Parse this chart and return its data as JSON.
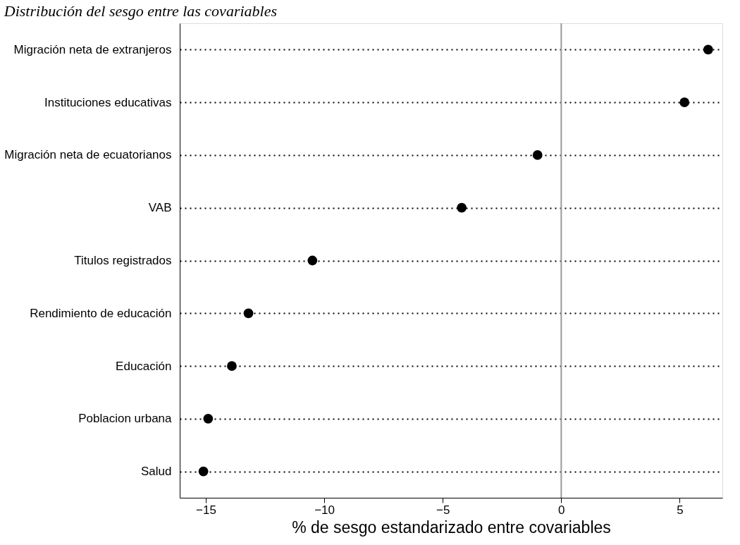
{
  "chart_data": {
    "type": "scatter",
    "title": "Distribución del sesgo entre las covariables",
    "xlabel": "% de sesgo estandarizado entre covariables",
    "orientation": "horizontal",
    "categories": [
      "Migración neta de extranjeros",
      "Instituciones educativas",
      "Migración neta de ecuatorianos",
      "VAB",
      "Titulos registrados",
      "Rendimiento de educación",
      "Educación",
      "Poblacion urbana",
      "Salud"
    ],
    "values": [
      6.2,
      5.2,
      -1.0,
      -4.2,
      -10.5,
      -13.2,
      -13.9,
      -14.9,
      -15.1
    ],
    "color": "#000000",
    "xlim": [
      -16.1,
      6.8
    ],
    "xticks": [
      -15,
      -10,
      -5,
      0,
      5
    ],
    "ref_lines": [
      {
        "axis": "x",
        "value": 0,
        "color": "#999999"
      }
    ],
    "grid": "y",
    "marker": "circle"
  }
}
